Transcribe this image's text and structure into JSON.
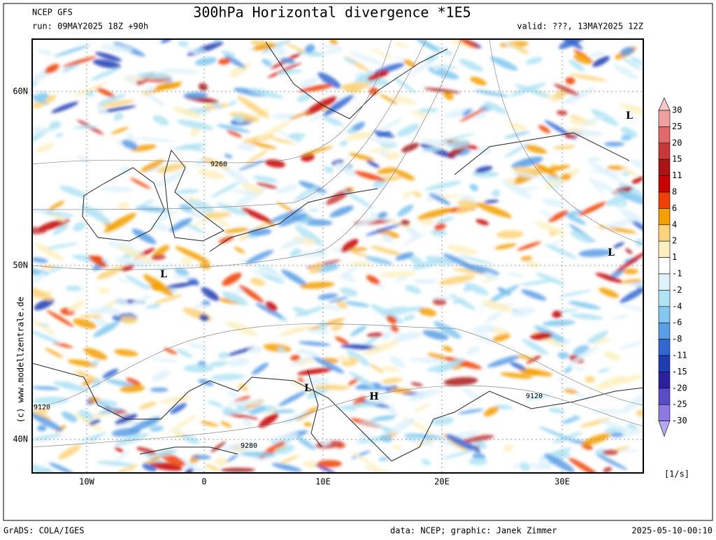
{
  "header": {
    "model": "NCEP GFS",
    "title": "300hPa Horizontal divergence *1E5",
    "run": "run: 09MAY2025 18Z +90h",
    "valid": "valid: ???, 13MAY2025 12Z"
  },
  "map": {
    "lat_labels": [
      "60N",
      "50N",
      "40N"
    ],
    "lon_labels": [
      "10W",
      "0",
      "10E",
      "20E",
      "30E"
    ],
    "contour_labels": [
      "9260",
      "9120",
      "9280",
      "9120"
    ],
    "pressure_labels": [
      "L",
      "L",
      "L",
      "L",
      "H"
    ],
    "watermark": "(c) www.modellzentrale.de"
  },
  "colorbar": {
    "levels": [
      30,
      25,
      20,
      15,
      11,
      8,
      6,
      4,
      2,
      1,
      -1,
      -2,
      -4,
      -6,
      -8,
      -11,
      -15,
      -20,
      -25,
      -30
    ],
    "colors": [
      "#f4c8c8",
      "#eea0a0",
      "#e06a6a",
      "#c83838",
      "#aa1414",
      "#c80000",
      "#f04000",
      "#f5a000",
      "#fbd37a",
      "#fdf0c0",
      "#ffffff",
      "#dff2fb",
      "#b0e4f5",
      "#82c8f0",
      "#5a9ee6",
      "#3268d2",
      "#1e3cb4",
      "#2a20a0",
      "#5a4cc8",
      "#8c7ae0",
      "#b4a8f0"
    ],
    "unit": "[1/s]"
  },
  "footer": {
    "left": "GrADS: COLA/IGES",
    "center": "data: NCEP; graphic: Janek Zimmer",
    "right": "2025-05-10-00:10"
  }
}
